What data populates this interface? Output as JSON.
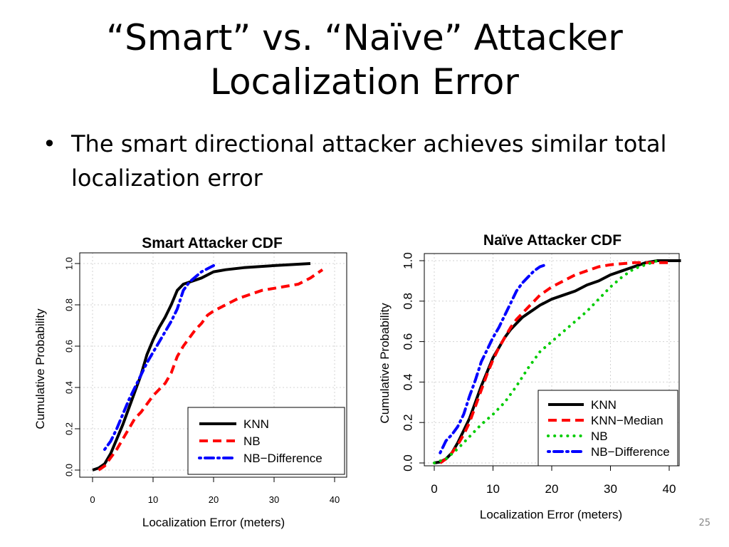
{
  "slide": {
    "title_line1": "“Smart” vs. “Naïve” Attacker",
    "title_line2": "Localization Error",
    "bullet": "The smart directional attacker achieves similar total localization error",
    "page_number": "25"
  },
  "chart_data": [
    {
      "type": "line",
      "title": "Smart Attacker CDF",
      "xlabel": "Localization Error (meters)",
      "ylabel": "Cumulative Probability",
      "xlim": [
        0,
        40
      ],
      "ylim": [
        0,
        1
      ],
      "xticks": [
        "0",
        "10",
        "20",
        "30",
        "40"
      ],
      "yticks": [
        "0.0",
        "0.2",
        "0.4",
        "0.6",
        "0.8",
        "1.0"
      ],
      "grid": true,
      "legend_position": "bottom-right",
      "series": [
        {
          "name": "KNN",
          "color": "#000000",
          "style": "solid",
          "points": [
            [
              0,
              0
            ],
            [
              1,
              0.01
            ],
            [
              2,
              0.03
            ],
            [
              3,
              0.08
            ],
            [
              4,
              0.15
            ],
            [
              5,
              0.22
            ],
            [
              6,
              0.3
            ],
            [
              7,
              0.38
            ],
            [
              8,
              0.46
            ],
            [
              9,
              0.56
            ],
            [
              10,
              0.63
            ],
            [
              11,
              0.69
            ],
            [
              12,
              0.74
            ],
            [
              13,
              0.8
            ],
            [
              14,
              0.87
            ],
            [
              15,
              0.9
            ],
            [
              16,
              0.91
            ],
            [
              18,
              0.93
            ],
            [
              20,
              0.96
            ],
            [
              22,
              0.97
            ],
            [
              25,
              0.98
            ],
            [
              30,
              0.99
            ],
            [
              36,
              1.0
            ]
          ]
        },
        {
          "name": "NB",
          "color": "#ff0000",
          "style": "dashed",
          "points": [
            [
              1,
              0
            ],
            [
              2,
              0.02
            ],
            [
              3,
              0.06
            ],
            [
              4,
              0.1
            ],
            [
              5,
              0.15
            ],
            [
              6,
              0.2
            ],
            [
              7,
              0.25
            ],
            [
              8,
              0.28
            ],
            [
              9,
              0.32
            ],
            [
              10,
              0.36
            ],
            [
              11,
              0.39
            ],
            [
              12,
              0.42
            ],
            [
              13,
              0.47
            ],
            [
              14,
              0.55
            ],
            [
              15,
              0.6
            ],
            [
              16,
              0.64
            ],
            [
              17,
              0.68
            ],
            [
              18,
              0.71
            ],
            [
              19,
              0.75
            ],
            [
              20,
              0.77
            ],
            [
              22,
              0.8
            ],
            [
              24,
              0.83
            ],
            [
              26,
              0.85
            ],
            [
              28,
              0.87
            ],
            [
              30,
              0.88
            ],
            [
              32,
              0.89
            ],
            [
              34,
              0.9
            ],
            [
              36,
              0.93
            ],
            [
              38,
              0.97
            ]
          ]
        },
        {
          "name": "NB−Difference",
          "color": "#0000ff",
          "style": "dashdot",
          "points": [
            [
              2,
              0.1
            ],
            [
              3,
              0.14
            ],
            [
              4,
              0.2
            ],
            [
              5,
              0.27
            ],
            [
              6,
              0.34
            ],
            [
              7,
              0.4
            ],
            [
              8,
              0.46
            ],
            [
              9,
              0.52
            ],
            [
              10,
              0.57
            ],
            [
              11,
              0.62
            ],
            [
              12,
              0.67
            ],
            [
              13,
              0.72
            ],
            [
              14,
              0.78
            ],
            [
              15,
              0.87
            ],
            [
              16,
              0.91
            ],
            [
              18,
              0.96
            ],
            [
              20,
              0.99
            ]
          ]
        }
      ]
    },
    {
      "type": "line",
      "title": "Naïve Attacker CDF",
      "xlabel": "Localization Error (meters)",
      "ylabel": "Cumulative Probability",
      "xlim": [
        0,
        40
      ],
      "ylim": [
        0,
        1
      ],
      "xticks": [
        "0",
        "10",
        "20",
        "30",
        "40"
      ],
      "yticks": [
        "0.0",
        "0.2",
        "0.4",
        "0.6",
        "0.8",
        "1.0"
      ],
      "grid": true,
      "legend_position": "bottom-right",
      "series": [
        {
          "name": "KNN",
          "color": "#000000",
          "style": "solid",
          "points": [
            [
              0,
              0
            ],
            [
              1,
              0.005
            ],
            [
              2,
              0.02
            ],
            [
              3,
              0.05
            ],
            [
              4,
              0.1
            ],
            [
              5,
              0.16
            ],
            [
              6,
              0.22
            ],
            [
              7,
              0.3
            ],
            [
              8,
              0.38
            ],
            [
              9,
              0.45
            ],
            [
              10,
              0.52
            ],
            [
              11,
              0.57
            ],
            [
              12,
              0.62
            ],
            [
              13,
              0.66
            ],
            [
              14,
              0.69
            ],
            [
              15,
              0.72
            ],
            [
              16,
              0.74
            ],
            [
              17,
              0.76
            ],
            [
              18,
              0.78
            ],
            [
              20,
              0.81
            ],
            [
              22,
              0.83
            ],
            [
              24,
              0.85
            ],
            [
              26,
              0.88
            ],
            [
              28,
              0.9
            ],
            [
              30,
              0.93
            ],
            [
              32,
              0.95
            ],
            [
              34,
              0.97
            ],
            [
              36,
              0.99
            ],
            [
              38,
              1.0
            ],
            [
              42,
              1.0
            ]
          ]
        },
        {
          "name": "KNN−Median",
          "color": "#ff0000",
          "style": "dashed",
          "points": [
            [
              1,
              0
            ],
            [
              2,
              0.02
            ],
            [
              3,
              0.05
            ],
            [
              4,
              0.09
            ],
            [
              5,
              0.14
            ],
            [
              6,
              0.2
            ],
            [
              7,
              0.28
            ],
            [
              8,
              0.36
            ],
            [
              9,
              0.44
            ],
            [
              10,
              0.51
            ],
            [
              11,
              0.57
            ],
            [
              12,
              0.62
            ],
            [
              13,
              0.67
            ],
            [
              14,
              0.71
            ],
            [
              15,
              0.74
            ],
            [
              16,
              0.77
            ],
            [
              17,
              0.8
            ],
            [
              18,
              0.83
            ],
            [
              20,
              0.87
            ],
            [
              22,
              0.9
            ],
            [
              24,
              0.93
            ],
            [
              26,
              0.95
            ],
            [
              28,
              0.97
            ],
            [
              30,
              0.98
            ],
            [
              34,
              0.99
            ],
            [
              38,
              0.99
            ],
            [
              40,
              0.99
            ]
          ]
        },
        {
          "name": "NB",
          "color": "#00cc00",
          "style": "dotted",
          "points": [
            [
              0,
              0
            ],
            [
              2,
              0.02
            ],
            [
              4,
              0.07
            ],
            [
              6,
              0.13
            ],
            [
              8,
              0.19
            ],
            [
              10,
              0.24
            ],
            [
              12,
              0.3
            ],
            [
              14,
              0.38
            ],
            [
              16,
              0.47
            ],
            [
              18,
              0.55
            ],
            [
              20,
              0.6
            ],
            [
              22,
              0.65
            ],
            [
              24,
              0.7
            ],
            [
              26,
              0.75
            ],
            [
              28,
              0.81
            ],
            [
              30,
              0.87
            ],
            [
              32,
              0.92
            ],
            [
              34,
              0.96
            ],
            [
              36,
              0.98
            ],
            [
              38,
              1.0
            ]
          ]
        },
        {
          "name": "NB−Difference",
          "color": "#0000ff",
          "style": "dashdot",
          "points": [
            [
              1,
              0.05
            ],
            [
              2,
              0.11
            ],
            [
              3,
              0.14
            ],
            [
              4,
              0.18
            ],
            [
              5,
              0.24
            ],
            [
              6,
              0.33
            ],
            [
              7,
              0.41
            ],
            [
              8,
              0.5
            ],
            [
              9,
              0.56
            ],
            [
              10,
              0.62
            ],
            [
              11,
              0.67
            ],
            [
              12,
              0.73
            ],
            [
              13,
              0.79
            ],
            [
              14,
              0.85
            ],
            [
              15,
              0.89
            ],
            [
              16,
              0.92
            ],
            [
              17,
              0.95
            ],
            [
              18,
              0.97
            ],
            [
              19,
              0.98
            ]
          ]
        }
      ]
    }
  ]
}
